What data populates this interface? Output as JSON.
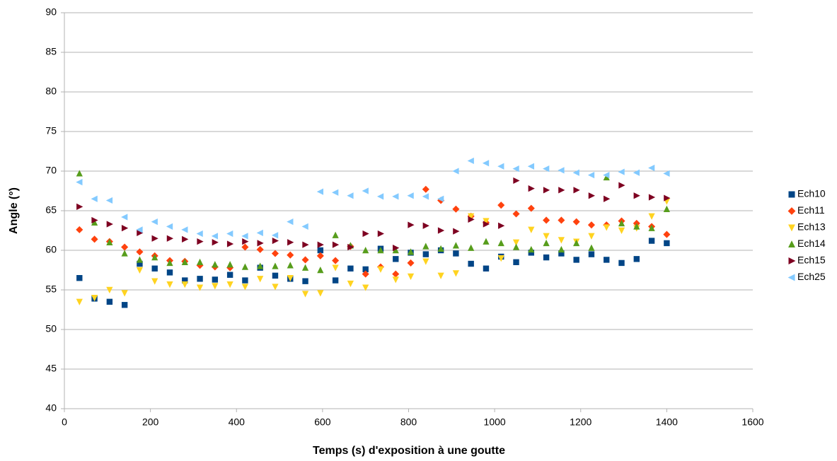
{
  "chart_data": {
    "type": "scatter",
    "xlabel": "Temps (s) d'exposition à une goutte",
    "ylabel": "Angle (°)",
    "x": [
      35,
      70,
      105,
      140,
      175,
      210,
      245,
      280,
      315,
      350,
      385,
      420,
      455,
      490,
      525,
      560,
      595,
      630,
      665,
      700,
      735,
      770,
      805,
      840,
      875,
      910,
      945,
      980,
      1015,
      1050,
      1085,
      1120,
      1155,
      1190,
      1225,
      1260,
      1295,
      1330,
      1365,
      1400
    ],
    "series": [
      {
        "name": "Ech10",
        "color": "#004586",
        "marker": "square",
        "values": [
          56.5,
          53.9,
          53.5,
          53.1,
          58.3,
          57.7,
          57.2,
          56.2,
          56.4,
          56.3,
          56.9,
          56.2,
          57.8,
          56.8,
          56.4,
          56.1,
          60.0,
          56.2,
          57.7,
          57.6,
          60.2,
          58.9,
          59.7,
          59.5,
          60.0,
          59.6,
          58.3,
          57.7,
          59.2,
          58.5,
          59.7,
          59.1,
          59.6,
          58.8,
          59.5,
          58.8,
          58.4,
          58.9,
          61.2,
          60.9
        ]
      },
      {
        "name": "Ech11",
        "color": "#ff420e",
        "marker": "diamond",
        "values": [
          62.6,
          61.4,
          61.1,
          60.4,
          59.8,
          59.3,
          58.7,
          58.6,
          58.1,
          57.9,
          57.8,
          60.4,
          60.1,
          59.6,
          59.4,
          58.8,
          59.3,
          58.7,
          60.5,
          57.0,
          57.9,
          57.0,
          58.4,
          67.7,
          66.3,
          65.2,
          64.3,
          63.5,
          65.7,
          64.6,
          65.3,
          63.8,
          63.8,
          63.6,
          63.2,
          63.2,
          63.7,
          63.4,
          63.0,
          62.0
        ]
      },
      {
        "name": "Ech13",
        "color": "#ffd320",
        "marker": "triangle-down",
        "values": [
          53.5,
          54.0,
          55.0,
          54.6,
          57.5,
          56.1,
          55.7,
          55.7,
          55.3,
          55.5,
          55.7,
          55.4,
          56.4,
          55.4,
          56.5,
          54.5,
          54.6,
          57.8,
          55.8,
          55.3,
          57.6,
          56.3,
          56.7,
          58.6,
          56.8,
          57.1,
          64.3,
          63.7,
          59.0,
          61.0,
          62.6,
          61.8,
          61.3,
          61.1,
          61.8,
          62.9,
          62.5,
          62.8,
          64.3,
          66.2
        ]
      },
      {
        "name": "Ech14",
        "color": "#579d1c",
        "marker": "triangle-up",
        "values": [
          69.7,
          63.5,
          61.0,
          59.6,
          58.8,
          59.1,
          58.4,
          58.5,
          58.5,
          58.2,
          58.2,
          57.9,
          58.0,
          58.0,
          58.1,
          57.8,
          57.5,
          61.9,
          60.6,
          60.0,
          60.0,
          60.0,
          59.8,
          60.5,
          60.2,
          60.6,
          60.3,
          61.1,
          60.9,
          60.4,
          60.1,
          60.9,
          60.1,
          60.9,
          60.3,
          69.2,
          63.4,
          63.0,
          62.8,
          65.2
        ]
      },
      {
        "name": "Ech15",
        "color": "#7e0021",
        "marker": "triangle-right",
        "values": [
          65.5,
          63.8,
          63.3,
          62.8,
          62.2,
          61.5,
          61.5,
          61.4,
          61.1,
          61.0,
          60.8,
          61.1,
          60.9,
          61.2,
          61.0,
          60.7,
          60.7,
          60.7,
          60.4,
          62.1,
          62.1,
          60.3,
          63.2,
          63.1,
          62.5,
          62.4,
          63.9,
          63.3,
          63.1,
          68.8,
          67.8,
          67.6,
          67.6,
          67.6,
          66.9,
          66.5,
          68.2,
          66.9,
          66.7,
          66.6
        ]
      },
      {
        "name": "Ech25",
        "color": "#83caff",
        "marker": "triangle-left",
        "values": [
          68.6,
          66.5,
          66.3,
          64.2,
          62.6,
          63.6,
          63.0,
          62.6,
          62.1,
          61.8,
          62.1,
          61.8,
          62.2,
          61.9,
          63.6,
          63.0,
          67.4,
          67.3,
          66.9,
          67.5,
          66.8,
          66.8,
          66.9,
          66.8,
          66.5,
          70.0,
          71.3,
          71.0,
          70.6,
          70.3,
          70.6,
          70.3,
          70.1,
          69.8,
          69.5,
          69.5,
          69.9,
          69.8,
          70.4,
          69.7
        ]
      }
    ],
    "xlim": [
      0,
      1600
    ],
    "xticks": [
      0,
      200,
      400,
      600,
      800,
      1000,
      1200,
      1400,
      1600
    ],
    "ylim": [
      40,
      90
    ],
    "yticks": [
      40,
      45,
      50,
      55,
      60,
      65,
      70,
      75,
      80,
      85,
      90
    ],
    "grid": true,
    "legend": "right"
  }
}
